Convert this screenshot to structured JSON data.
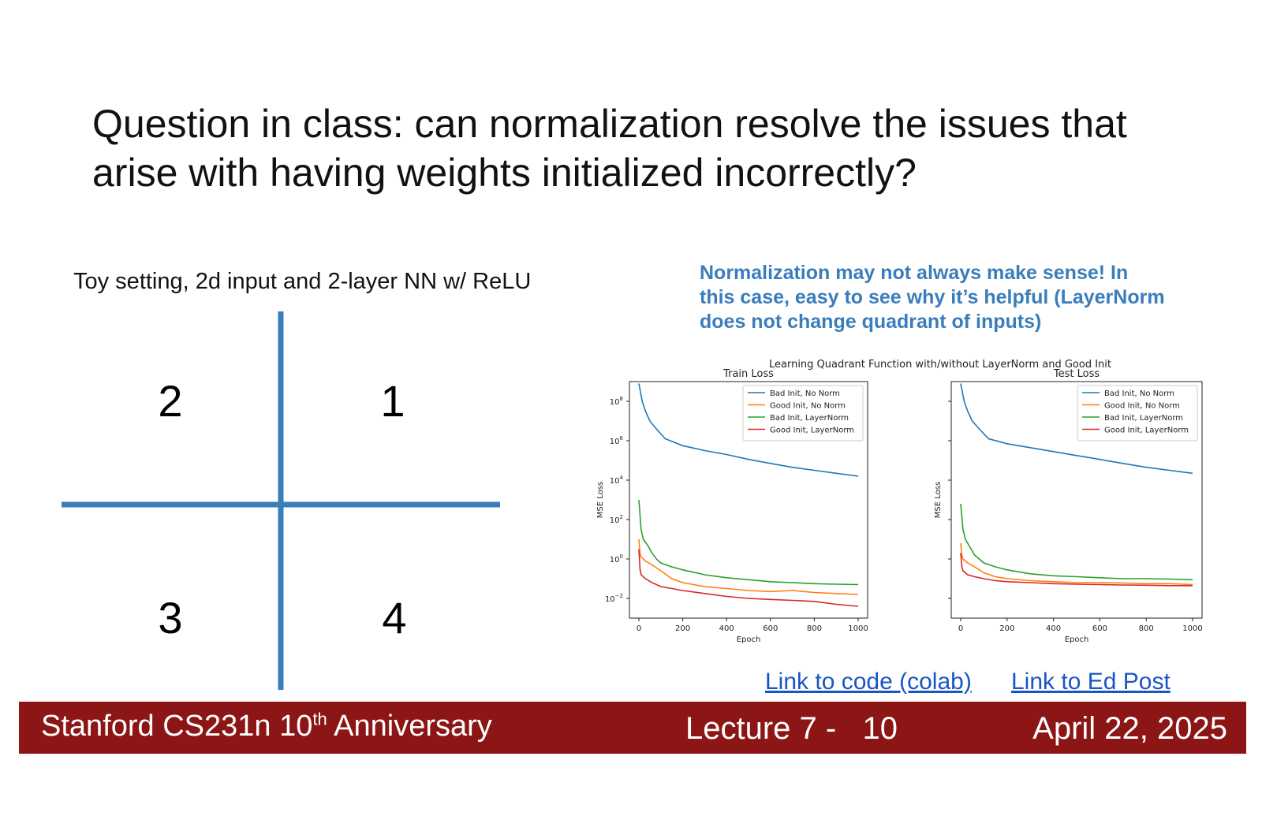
{
  "slide": {
    "title_line1": "Question in class: can normalization resolve the issues that",
    "title_line2": "arise with having weights initialized incorrectly?",
    "toy_caption": "Toy setting, 2d input and 2-layer NN w/ ReLU",
    "quadrant_labels": [
      "2",
      "1",
      "3",
      "4"
    ],
    "accent_color": "#3a7dbb",
    "note_line1": "Normalization may not always make sense! In",
    "note_line2": "this case, easy to see why it’s helpful (LayerNorm",
    "note_line3": "does not change quadrant of inputs)",
    "link_code": "Link to code (colab)",
    "link_ed": "Link to Ed Post"
  },
  "footer": {
    "course": "Stanford CS231n 10",
    "course_sup": "th",
    "course_suffix": " Anniversary",
    "lecture": "Lecture 7 -   10",
    "date": "April 22, 2025",
    "background_color": "#8c1515"
  },
  "chart_data": {
    "suptitle": "Learning Quadrant Function with/without LayerNorm and Good Init",
    "colors": {
      "Bad Init, No Norm": "#1f77b4",
      "Good Init, No Norm": "#ff7f0e",
      "Bad Init, LayerNorm": "#2ca02c",
      "Good Init, LayerNorm": "#d62728"
    },
    "panels": [
      {
        "type": "line",
        "title": "Train Loss",
        "xlabel": "Epoch",
        "ylabel": "MSE Loss",
        "yscale": "log",
        "xlim": [
          0,
          1000
        ],
        "ylim_exp": [
          -3,
          9
        ],
        "xticks": [
          0,
          200,
          400,
          600,
          800,
          1000
        ],
        "ytick_exps": [
          -2,
          0,
          2,
          4,
          6,
          8
        ],
        "legend": "top-right",
        "series": [
          {
            "name": "Bad Init, No Norm",
            "x": [
              0,
              15,
              30,
              50,
              80,
              120,
              200,
              300,
              400,
              500,
              600,
              700,
              800,
              900,
              1000
            ],
            "y_exp": [
              8.9,
              8.0,
              7.5,
              7.0,
              6.6,
              6.1,
              5.75,
              5.5,
              5.3,
              5.05,
              4.85,
              4.65,
              4.5,
              4.35,
              4.2
            ]
          },
          {
            "name": "Good Init, No Norm",
            "x": [
              0,
              5,
              10,
              30,
              60,
              100,
              150,
              200,
              300,
              400,
              500,
              600,
              700,
              800,
              900,
              1000
            ],
            "y_exp": [
              1.0,
              0.3,
              0.1,
              -0.1,
              -0.3,
              -0.6,
              -1.0,
              -1.2,
              -1.4,
              -1.5,
              -1.6,
              -1.65,
              -1.6,
              -1.7,
              -1.75,
              -1.8
            ]
          },
          {
            "name": "Bad Init, LayerNorm",
            "x": [
              0,
              10,
              20,
              40,
              60,
              80,
              100,
              150,
              200,
              300,
              400,
              500,
              600,
              700,
              800,
              900,
              1000
            ],
            "y_exp": [
              3.0,
              1.5,
              1.0,
              0.7,
              0.3,
              0.0,
              -0.2,
              -0.4,
              -0.55,
              -0.8,
              -0.95,
              -1.05,
              -1.15,
              -1.2,
              -1.25,
              -1.28,
              -1.3
            ]
          },
          {
            "name": "Good Init, LayerNorm",
            "x": [
              0,
              5,
              10,
              30,
              60,
              100,
              150,
              200,
              300,
              400,
              500,
              600,
              700,
              800,
              900,
              1000
            ],
            "y_exp": [
              0.5,
              -0.5,
              -0.8,
              -1.0,
              -1.2,
              -1.4,
              -1.5,
              -1.6,
              -1.75,
              -1.9,
              -2.0,
              -2.05,
              -2.1,
              -2.15,
              -2.3,
              -2.4
            ]
          }
        ]
      },
      {
        "type": "line",
        "title": "Test Loss",
        "xlabel": "Epoch",
        "ylabel": "MSE Loss",
        "yscale": "log",
        "xlim": [
          0,
          1000
        ],
        "ylim_exp": [
          -3,
          9
        ],
        "xticks": [
          0,
          200,
          400,
          600,
          800,
          1000
        ],
        "ytick_exps": [
          -2,
          0,
          2,
          4,
          6,
          8
        ],
        "legend": "top-right",
        "series": [
          {
            "name": "Bad Init, No Norm",
            "x": [
              0,
              15,
              30,
              50,
              80,
              120,
              200,
              300,
              400,
              500,
              600,
              700,
              800,
              900,
              1000
            ],
            "y_exp": [
              8.9,
              8.0,
              7.5,
              7.0,
              6.6,
              6.1,
              5.85,
              5.65,
              5.45,
              5.25,
              5.05,
              4.85,
              4.65,
              4.5,
              4.35
            ]
          },
          {
            "name": "Good Init, No Norm",
            "x": [
              0,
              5,
              10,
              30,
              60,
              100,
              150,
              200,
              300,
              400,
              500,
              600,
              700,
              800,
              900,
              1000
            ],
            "y_exp": [
              0.8,
              0.2,
              0.0,
              -0.2,
              -0.4,
              -0.7,
              -0.9,
              -1.0,
              -1.1,
              -1.15,
              -1.2,
              -1.2,
              -1.22,
              -1.25,
              -1.25,
              -1.3
            ]
          },
          {
            "name": "Bad Init, LayerNorm",
            "x": [
              0,
              10,
              20,
              40,
              60,
              80,
              100,
              150,
              200,
              300,
              400,
              500,
              600,
              700,
              800,
              900,
              1000
            ],
            "y_exp": [
              2.8,
              1.5,
              1.0,
              0.6,
              0.2,
              0.0,
              -0.2,
              -0.4,
              -0.55,
              -0.75,
              -0.85,
              -0.9,
              -0.95,
              -1.0,
              -1.0,
              -1.02,
              -1.05
            ]
          },
          {
            "name": "Good Init, LayerNorm",
            "x": [
              0,
              5,
              10,
              30,
              60,
              100,
              150,
              200,
              300,
              400,
              500,
              600,
              700,
              800,
              900,
              1000
            ],
            "y_exp": [
              0.3,
              -0.4,
              -0.6,
              -0.8,
              -0.9,
              -1.0,
              -1.1,
              -1.15,
              -1.2,
              -1.25,
              -1.28,
              -1.3,
              -1.32,
              -1.33,
              -1.35,
              -1.35
            ]
          }
        ]
      }
    ]
  }
}
